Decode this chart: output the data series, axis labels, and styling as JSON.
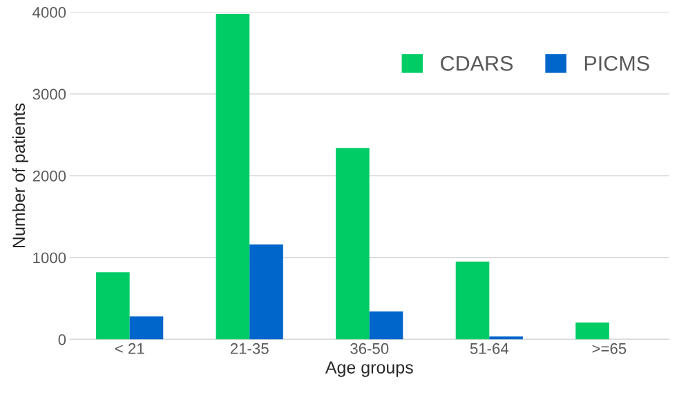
{
  "chart_data": {
    "type": "bar",
    "xlabel": "Age groups",
    "ylabel": "Number of patients",
    "categories": [
      "< 21",
      "21-35",
      "36-50",
      "51-64",
      ">=65"
    ],
    "series": [
      {
        "name": "CDARS",
        "color": "#00cc66",
        "values": [
          820,
          3980,
          2340,
          950,
          205
        ]
      },
      {
        "name": "PICMS",
        "color": "#0066cc",
        "values": [
          280,
          1160,
          340,
          35,
          0
        ]
      }
    ],
    "ylim": [
      0,
      4000
    ],
    "yticks": [
      0,
      1000,
      2000,
      3000,
      4000
    ],
    "grid": "y",
    "legend": "top right"
  }
}
